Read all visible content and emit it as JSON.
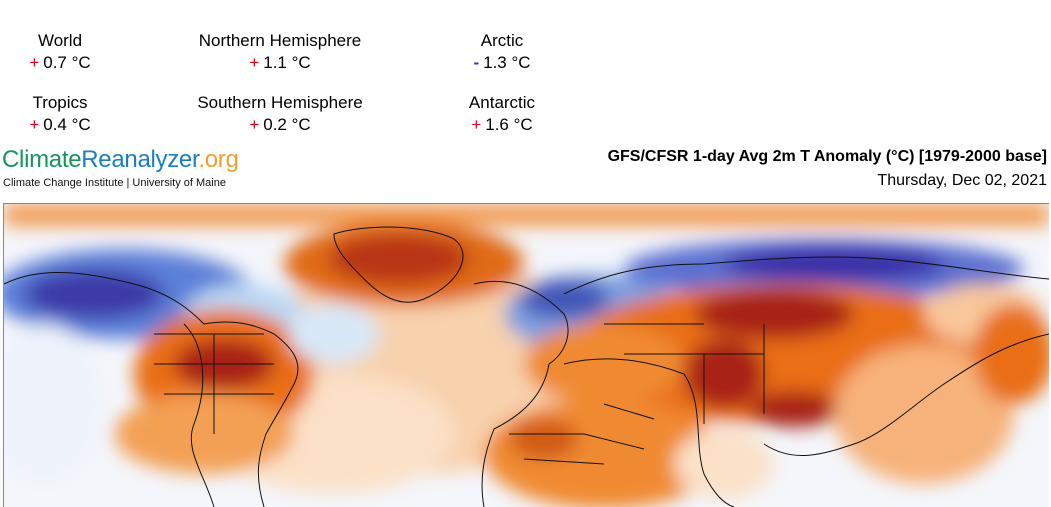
{
  "stats": [
    {
      "name": "World",
      "sign": "+",
      "value": "0.7 °C"
    },
    {
      "name": "Northern Hemisphere",
      "sign": "+",
      "value": "1.1 °C"
    },
    {
      "name": "Arctic",
      "sign": "-",
      "value": "1.3 °C"
    },
    {
      "name": "Tropics",
      "sign": "+",
      "value": "0.4 °C"
    },
    {
      "name": "Southern Hemisphere",
      "sign": "+",
      "value": "0.2 °C"
    },
    {
      "name": "Antarctic",
      "sign": "+",
      "value": "1.6 °C"
    }
  ],
  "brand": {
    "part1": "Climate",
    "part2": "Reanalyzer",
    "part3": ".org",
    "institution": "Climate Change Institute | University of Maine"
  },
  "map": {
    "title": "GFS/CFSR 1-day Avg 2m T Anomaly (°C) [1979-2000 base]",
    "date": "Thursday, Dec 02, 2021",
    "colors": {
      "deep_cold": "#3b2fa8",
      "cold": "#3f78d6",
      "cool": "#bcd8f5",
      "neutral": "#ffffff",
      "warm": "#f7c08a",
      "hot": "#e96e12",
      "very_hot": "#a82218"
    }
  }
}
